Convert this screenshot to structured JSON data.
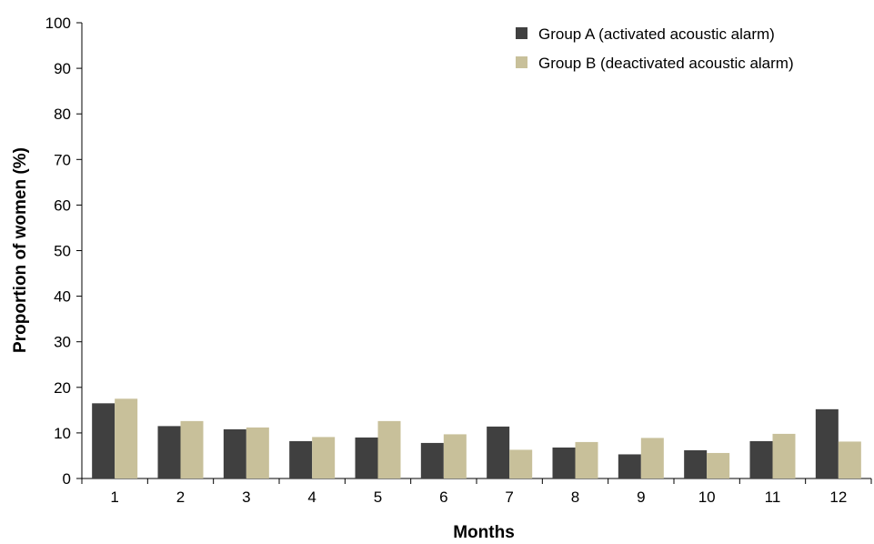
{
  "chart_data": {
    "type": "bar",
    "xlabel": "Months",
    "ylabel": "Proportion of women (%)",
    "ylim": [
      0,
      100
    ],
    "yticks": [
      0,
      10,
      20,
      30,
      40,
      50,
      60,
      70,
      80,
      90,
      100
    ],
    "categories": [
      "1",
      "2",
      "3",
      "4",
      "5",
      "6",
      "7",
      "8",
      "9",
      "10",
      "11",
      "12"
    ],
    "series": [
      {
        "name": "Group A (activated acoustic alarm)",
        "color": "#404040",
        "values": [
          16.5,
          11.5,
          10.8,
          8.2,
          9.0,
          7.8,
          11.4,
          6.8,
          5.3,
          6.2,
          8.2,
          15.2
        ]
      },
      {
        "name": "Group B (deactivated acoustic alarm)",
        "color": "#c8c09a",
        "values": [
          17.5,
          12.6,
          11.2,
          9.1,
          12.6,
          9.7,
          6.3,
          8.0,
          8.9,
          5.6,
          9.8,
          8.1
        ]
      }
    ],
    "grid": false,
    "legend_position": "top-right"
  }
}
